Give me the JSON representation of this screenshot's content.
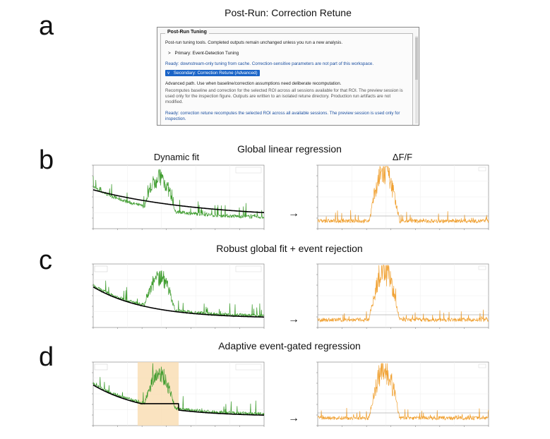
{
  "panel_a": {
    "letter": "a",
    "title": "Post-Run: Correction Retune",
    "window": {
      "group_title": "Post-Run Tuning",
      "intro": "Post-run tuning tools. Completed outputs remain unchanged unless you run a new analysis.",
      "primary_item": "Primary: Event-Detection Tuning",
      "primary_expander": ">",
      "primary_status": "Ready: downstream-only tuning from cache. Correction-sensitive parameters are not part of this workspace.",
      "secondary_item": "Secondary: Correction Retune (Advanced)",
      "secondary_expander": "v",
      "advanced_note": "Advanced path. Use when baseline/correction assumptions need deliberate recomputation.",
      "description": "Recomputes baseline and correction for the selected ROI across all sessions available for that ROI. The preview session is used only for the inspection figure. Outputs are written to an isolated retune directory. Production run artifacts are not modified.",
      "secondary_status": "Ready: correction retune recomputes the selected ROI across all available sessions. The preview session is used only for inspection."
    }
  },
  "panel_b": {
    "letter": "b",
    "title": "Global linear regression",
    "left_column_title": "Dynamic fit",
    "right_column_title": "ΔF/F",
    "arrow": "→"
  },
  "panel_c": {
    "letter": "c",
    "title": "Robust global fit + event rejection",
    "arrow": "→"
  },
  "panel_d": {
    "letter": "d",
    "title": "Adaptive event-gated regression",
    "arrow": "→"
  },
  "colors": {
    "signal": "#3a9a2a",
    "fit": "#000000",
    "dff": "#f0a030",
    "gate_shade": "#f9dcb0",
    "selected": "#1a64c7",
    "status_text": "#1b4fa0"
  }
}
